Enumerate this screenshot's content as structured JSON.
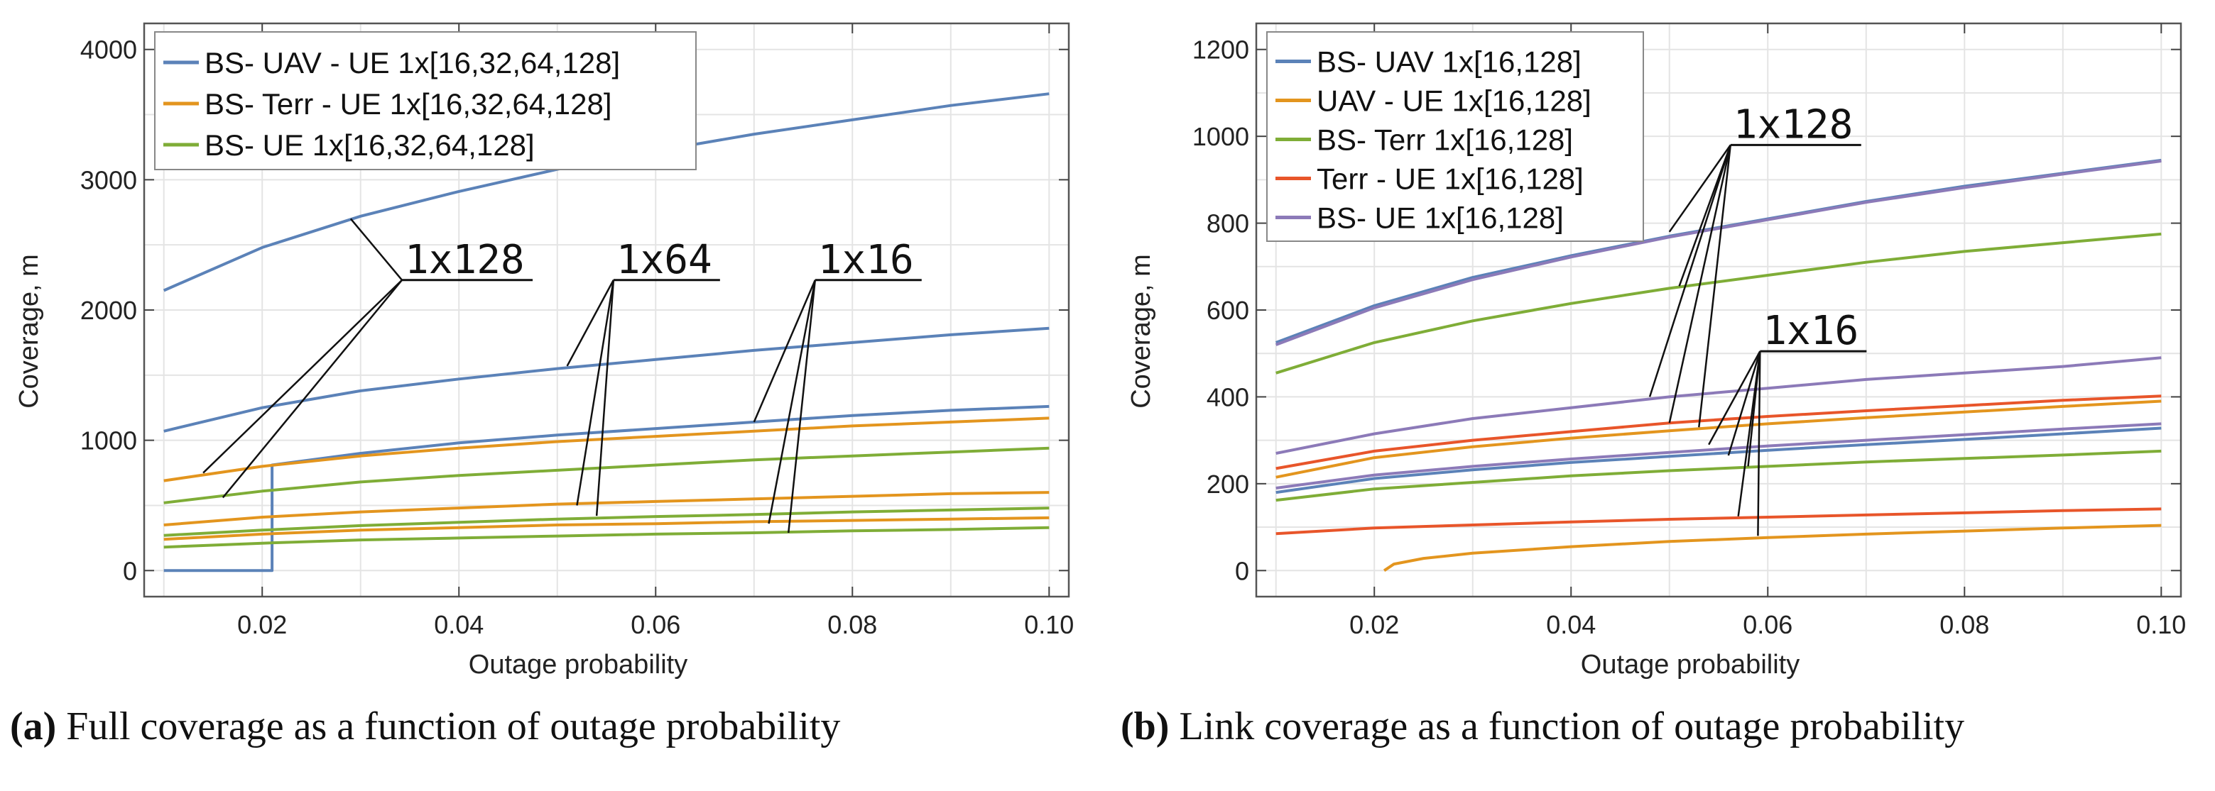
{
  "chart_data": [
    {
      "type": "line",
      "panel": "a",
      "caption_letter": "(a)",
      "caption_text": "Full coverage as a function of outage probability",
      "xlabel": "Outage probability",
      "ylabel": "Coverage, m",
      "xlim": [
        0.008,
        0.102
      ],
      "ylim": [
        -200,
        4200
      ],
      "xticks": [
        0.02,
        0.04,
        0.06,
        0.08,
        0.1
      ],
      "xtick_labels": [
        "0.02",
        "0.04",
        "0.06",
        "0.08",
        "0.10"
      ],
      "yticks": [
        0,
        1000,
        2000,
        3000,
        4000
      ],
      "ytick_labels": [
        "0",
        "1000",
        "2000",
        "3000",
        "4000"
      ],
      "grid": true,
      "legend_position": "top-left",
      "legend": [
        {
          "label": "BS- UAV - UE 1x[16,32,64,128]",
          "color": "#5b82b8"
        },
        {
          "label": "BS- Terr - UE 1x[16,32,64,128]",
          "color": "#e3951e"
        },
        {
          "label": "BS- UE 1x[16,32,64,128]",
          "color": "#7fad37"
        }
      ],
      "series": [
        {
          "name": "BS-UAV-UE 1x128",
          "color": "#5b82b8",
          "x": [
            0.01,
            0.02,
            0.03,
            0.04,
            0.05,
            0.06,
            0.07,
            0.08,
            0.09,
            0.1
          ],
          "y": [
            2150,
            2480,
            2720,
            2910,
            3080,
            3220,
            3350,
            3460,
            3570,
            3660
          ]
        },
        {
          "name": "BS-UAV-UE 1x64",
          "color": "#5b82b8",
          "x": [
            0.01,
            0.02,
            0.03,
            0.04,
            0.05,
            0.06,
            0.07,
            0.08,
            0.09,
            0.1
          ],
          "y": [
            1070,
            1250,
            1380,
            1470,
            1550,
            1620,
            1690,
            1750,
            1810,
            1860
          ]
        },
        {
          "name": "BS-UAV-UE 1x16",
          "color": "#5b82b8",
          "x": [
            0.01,
            0.021,
            0.021,
            0.03,
            0.04,
            0.05,
            0.06,
            0.07,
            0.08,
            0.09,
            0.1
          ],
          "y": [
            0,
            0,
            810,
            900,
            980,
            1040,
            1090,
            1140,
            1190,
            1230,
            1260
          ]
        },
        {
          "name": "BS-Terr-UE 1x128",
          "color": "#e3951e",
          "x": [
            0.01,
            0.02,
            0.03,
            0.04,
            0.05,
            0.06,
            0.07,
            0.08,
            0.09,
            0.1
          ],
          "y": [
            690,
            800,
            880,
            940,
            990,
            1030,
            1070,
            1110,
            1140,
            1170
          ]
        },
        {
          "name": "BS-Terr-UE 1x64",
          "color": "#e3951e",
          "x": [
            0.01,
            0.02,
            0.03,
            0.04,
            0.05,
            0.06,
            0.07,
            0.08,
            0.09,
            0.1
          ],
          "y": [
            350,
            410,
            450,
            480,
            510,
            530,
            550,
            570,
            590,
            600
          ]
        },
        {
          "name": "BS-Terr-UE 1x16",
          "color": "#e3951e",
          "x": [
            0.01,
            0.02,
            0.03,
            0.04,
            0.05,
            0.06,
            0.07,
            0.08,
            0.09,
            0.1
          ],
          "y": [
            240,
            280,
            310,
            330,
            350,
            360,
            375,
            385,
            395,
            405
          ]
        },
        {
          "name": "BS-UE 1x128",
          "color": "#7fad37",
          "x": [
            0.01,
            0.02,
            0.03,
            0.04,
            0.05,
            0.06,
            0.07,
            0.08,
            0.09,
            0.1
          ],
          "y": [
            520,
            610,
            680,
            730,
            770,
            810,
            850,
            880,
            910,
            940
          ]
        },
        {
          "name": "BS-UE 1x64",
          "color": "#7fad37",
          "x": [
            0.01,
            0.02,
            0.03,
            0.04,
            0.05,
            0.06,
            0.07,
            0.08,
            0.09,
            0.1
          ],
          "y": [
            270,
            310,
            345,
            370,
            395,
            415,
            430,
            450,
            465,
            480
          ]
        },
        {
          "name": "BS-UE 1x16",
          "color": "#7fad37",
          "x": [
            0.01,
            0.02,
            0.03,
            0.04,
            0.05,
            0.06,
            0.07,
            0.08,
            0.09,
            0.1
          ],
          "y": [
            180,
            210,
            235,
            250,
            265,
            280,
            290,
            305,
            315,
            330
          ]
        }
      ],
      "annotations": [
        {
          "text": "1x128",
          "x": 0.0345,
          "y": 2230,
          "targets": [
            [
              0.029,
              2700
            ],
            [
              0.014,
              750
            ],
            [
              0.016,
              560
            ]
          ]
        },
        {
          "text": "1x64",
          "x": 0.056,
          "y": 2230,
          "targets": [
            [
              0.051,
              1570
            ],
            [
              0.052,
              500
            ],
            [
              0.054,
              420
            ]
          ]
        },
        {
          "text": "1x16",
          "x": 0.0765,
          "y": 2230,
          "targets": [
            [
              0.07,
              1140
            ],
            [
              0.0715,
              360
            ],
            [
              0.0735,
              290
            ]
          ]
        }
      ]
    },
    {
      "type": "line",
      "panel": "b",
      "caption_letter": "(b)",
      "caption_text": "Link coverage as a function of outage probability",
      "xlabel": "Outage probability",
      "ylabel": "Coverage, m",
      "xlim": [
        0.008,
        0.102
      ],
      "ylim": [
        -60,
        1260
      ],
      "xticks": [
        0.02,
        0.04,
        0.06,
        0.08,
        0.1
      ],
      "xtick_labels": [
        "0.02",
        "0.04",
        "0.06",
        "0.08",
        "0.10"
      ],
      "yticks": [
        0,
        200,
        400,
        600,
        800,
        1000,
        1200
      ],
      "ytick_labels": [
        "0",
        "200",
        "400",
        "600",
        "800",
        "1000",
        "1200"
      ],
      "grid": true,
      "legend_position": "top-left",
      "legend": [
        {
          "label": "BS- UAV 1x[16,128]",
          "color": "#5b82b8"
        },
        {
          "label": "UAV - UE 1x[16,128]",
          "color": "#e3951e"
        },
        {
          "label": "BS- Terr 1x[16,128]",
          "color": "#7fad37"
        },
        {
          "label": "Terr - UE 1x[16,128]",
          "color": "#e8552a"
        },
        {
          "label": "BS- UE 1x[16,128]",
          "color": "#8c7ab8"
        }
      ],
      "series": [
        {
          "name": "BS-UAV 1x128",
          "color": "#5b82b8",
          "x": [
            0.01,
            0.02,
            0.03,
            0.04,
            0.05,
            0.06,
            0.07,
            0.08,
            0.09,
            0.1
          ],
          "y": [
            525,
            610,
            675,
            725,
            770,
            810,
            850,
            885,
            915,
            945
          ]
        },
        {
          "name": "BS-UE 1x128",
          "color": "#8c7ab8",
          "x": [
            0.01,
            0.02,
            0.03,
            0.04,
            0.05,
            0.06,
            0.07,
            0.08,
            0.09,
            0.1
          ],
          "y": [
            520,
            605,
            670,
            722,
            768,
            808,
            848,
            882,
            913,
            943
          ]
        },
        {
          "name": "BS-Terr 1x128",
          "color": "#7fad37",
          "x": [
            0.01,
            0.02,
            0.03,
            0.04,
            0.05,
            0.06,
            0.07,
            0.08,
            0.09,
            0.1
          ],
          "y": [
            455,
            525,
            575,
            615,
            650,
            680,
            710,
            735,
            755,
            775
          ]
        },
        {
          "name": "BS-UE 1x16",
          "color": "#8c7ab8",
          "x": [
            0.01,
            0.02,
            0.03,
            0.04,
            0.05,
            0.06,
            0.07,
            0.08,
            0.09,
            0.1
          ],
          "y": [
            270,
            315,
            350,
            375,
            400,
            420,
            440,
            455,
            470,
            490
          ]
        },
        {
          "name": "Terr-UE 1x128",
          "color": "#e8552a",
          "x": [
            0.01,
            0.02,
            0.03,
            0.04,
            0.05,
            0.06,
            0.07,
            0.08,
            0.09,
            0.1
          ],
          "y": [
            235,
            275,
            300,
            320,
            340,
            355,
            368,
            380,
            392,
            402
          ]
        },
        {
          "name": "UAV-UE 1x128",
          "color": "#e3951e",
          "x": [
            0.01,
            0.02,
            0.03,
            0.04,
            0.05,
            0.06,
            0.07,
            0.08,
            0.09,
            0.1
          ],
          "y": [
            215,
            260,
            285,
            305,
            322,
            338,
            352,
            365,
            378,
            390
          ]
        },
        {
          "name": "BS-UE 1x16 (lower)",
          "color": "#8c7ab8",
          "x": [
            0.01,
            0.02,
            0.03,
            0.04,
            0.05,
            0.06,
            0.07,
            0.08,
            0.09,
            0.1
          ],
          "y": [
            190,
            220,
            240,
            257,
            272,
            287,
            300,
            313,
            326,
            338
          ]
        },
        {
          "name": "BS-UAV 1x16",
          "color": "#5b82b8",
          "x": [
            0.01,
            0.02,
            0.03,
            0.04,
            0.05,
            0.06,
            0.07,
            0.08,
            0.09,
            0.1
          ],
          "y": [
            180,
            212,
            232,
            249,
            263,
            277,
            290,
            302,
            315,
            328
          ]
        },
        {
          "name": "BS-Terr 1x16",
          "color": "#7fad37",
          "x": [
            0.01,
            0.02,
            0.03,
            0.04,
            0.05,
            0.06,
            0.07,
            0.08,
            0.09,
            0.1
          ],
          "y": [
            162,
            188,
            203,
            218,
            230,
            240,
            250,
            258,
            266,
            275
          ]
        },
        {
          "name": "Terr-UE 1x16",
          "color": "#e8552a",
          "x": [
            0.01,
            0.02,
            0.03,
            0.04,
            0.05,
            0.06,
            0.07,
            0.08,
            0.09,
            0.1
          ],
          "y": [
            85,
            98,
            105,
            112,
            118,
            123,
            128,
            133,
            138,
            142
          ]
        },
        {
          "name": "UAV-UE 1x16",
          "color": "#e3951e",
          "x": [
            0.021,
            0.022,
            0.025,
            0.03,
            0.04,
            0.05,
            0.06,
            0.07,
            0.08,
            0.09,
            0.1
          ],
          "y": [
            0,
            15,
            28,
            40,
            55,
            67,
            76,
            84,
            91,
            98,
            104
          ]
        }
      ],
      "annotations": [
        {
          "text": "1x128",
          "x": 0.0565,
          "y": 980,
          "targets": [
            [
              0.05,
              780
            ],
            [
              0.051,
              655
            ],
            [
              0.048,
              400
            ],
            [
              0.05,
              340
            ],
            [
              0.053,
              330
            ]
          ]
        },
        {
          "text": "1x16",
          "x": 0.0595,
          "y": 505,
          "targets": [
            [
              0.054,
              290
            ],
            [
              0.056,
              265
            ],
            [
              0.058,
              240
            ],
            [
              0.057,
              125
            ],
            [
              0.059,
              80
            ]
          ]
        }
      ]
    }
  ]
}
